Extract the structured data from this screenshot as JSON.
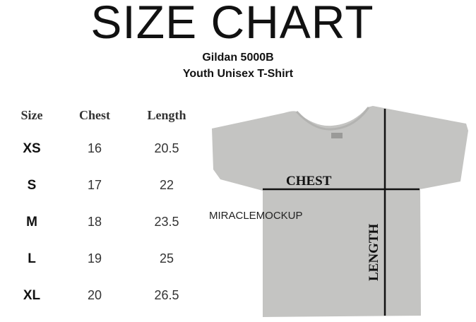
{
  "title": "SIZE CHART",
  "subtitle": [
    "Gildan 5000B",
    "Youth Unisex T-Shirt"
  ],
  "table": {
    "headers": [
      "Size",
      "Chest",
      "Length"
    ],
    "rows": [
      [
        "XS",
        "16",
        "20.5"
      ],
      [
        "S",
        "17",
        "22"
      ],
      [
        "M",
        "18",
        "23.5"
      ],
      [
        "L",
        "19",
        "25"
      ],
      [
        "XL",
        "20",
        "26.5"
      ]
    ]
  },
  "diagram": {
    "chest_label": "CHEST",
    "length_label": "LENGTH",
    "shirt_color": "#c4c4c2"
  },
  "watermark": "MIRACLEMOCKUP"
}
